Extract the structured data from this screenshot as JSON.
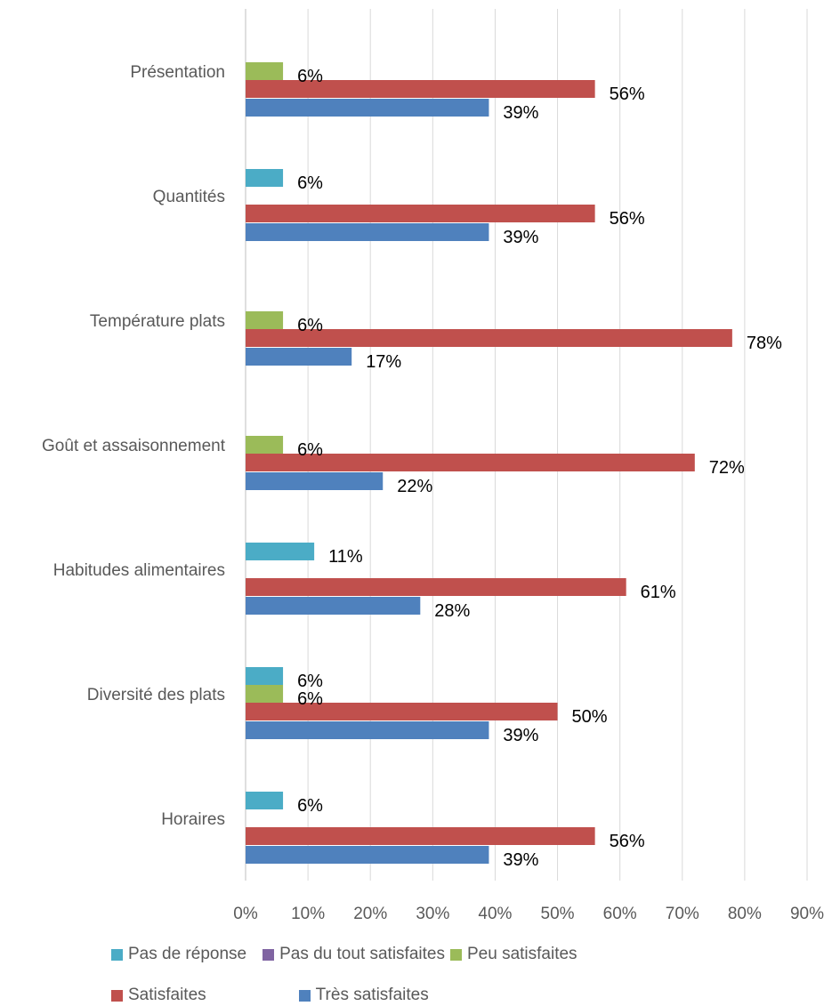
{
  "chart_data": {
    "type": "bar",
    "orientation": "horizontal",
    "categories": [
      "Présentation",
      "Quantités",
      "Température plats",
      "Goût et assaisonnement",
      "Habitudes alimentaires",
      "Diversité des plats",
      "Horaires"
    ],
    "series": [
      {
        "name": "Pas de réponse",
        "color": "#4bacc6",
        "values": [
          null,
          6,
          null,
          null,
          11,
          6,
          6
        ],
        "labels": [
          "",
          "6%",
          "",
          "",
          "11%",
          "6%",
          "6%"
        ]
      },
      {
        "name": "Pas du tout satisfaites",
        "color": "#8064a2",
        "values": [
          null,
          null,
          null,
          null,
          null,
          null,
          null
        ],
        "labels": [
          "",
          "",
          "",
          "",
          "",
          "",
          ""
        ]
      },
      {
        "name": "Peu satisfaites",
        "color": "#9bbb59",
        "values": [
          6,
          null,
          6,
          6,
          null,
          6,
          null
        ],
        "labels": [
          "6%",
          "",
          "6%",
          "6%",
          "",
          "6%",
          ""
        ]
      },
      {
        "name": "Satisfaites",
        "color": "#c0504d",
        "values": [
          56,
          56,
          78,
          72,
          61,
          50,
          56
        ],
        "labels": [
          "56%",
          "56%",
          "78%",
          "72%",
          "61%",
          "50%",
          "56%"
        ]
      },
      {
        "name": "Très satisfaites",
        "color": "#4f81bd",
        "values": [
          39,
          39,
          17,
          22,
          28,
          39,
          39
        ],
        "labels": [
          "39%",
          "39%",
          "17%",
          "22%",
          "28%",
          "39%",
          "39%"
        ]
      }
    ],
    "x_ticks": [
      "0%",
      "10%",
      "20%",
      "30%",
      "40%",
      "50%",
      "60%",
      "70%",
      "80%",
      "90%"
    ],
    "xlim": [
      0,
      90
    ],
    "grid": true,
    "legend_position": "bottom"
  }
}
